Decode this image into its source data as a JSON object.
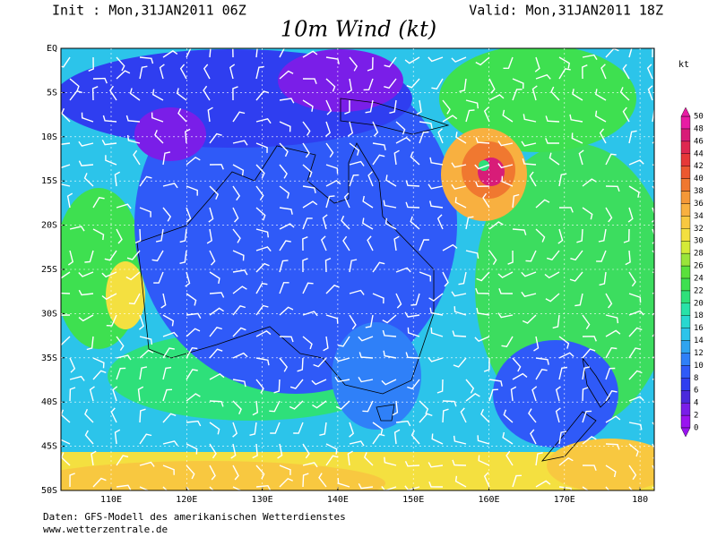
{
  "header": {
    "init": "Init : Mon,31JAN2011 06Z",
    "valid": "Valid: Mon,31JAN2011 18Z",
    "title": "10m Wind (kt)"
  },
  "map": {
    "lat_labels": [
      "EQ",
      "5S",
      "10S",
      "15S",
      "20S",
      "25S",
      "30S",
      "35S",
      "40S",
      "45S",
      "50S"
    ],
    "lon_labels": [
      "110E",
      "120E",
      "130E",
      "140E",
      "150E",
      "160E",
      "170E",
      "180"
    ]
  },
  "colorbar": {
    "unit": "kt",
    "ticks": [
      0,
      2,
      4,
      6,
      8,
      10,
      12,
      14,
      16,
      18,
      20,
      22,
      24,
      26,
      28,
      30,
      32,
      34,
      36,
      38,
      40,
      42,
      44,
      46,
      48,
      50
    ],
    "colors": [
      "#9a14f0",
      "#7a1ee8",
      "#4a2adc",
      "#2f3ef0",
      "#2f5af8",
      "#2f80f8",
      "#2fa4f0",
      "#2cc4ea",
      "#28d8d0",
      "#28e2a8",
      "#2ee07a",
      "#3ee050",
      "#5ae03c",
      "#9ae43a",
      "#d4ea38",
      "#f4e040",
      "#f8c840",
      "#f8b040",
      "#f49838",
      "#f07830",
      "#ec5830",
      "#e63838",
      "#de2850",
      "#d81c78",
      "#e81ca4"
    ]
  },
  "footer": {
    "source": "Daten: GFS-Modell des amerikanischen Wetterdienstes",
    "url": "www.wetterzentrale.de"
  }
}
